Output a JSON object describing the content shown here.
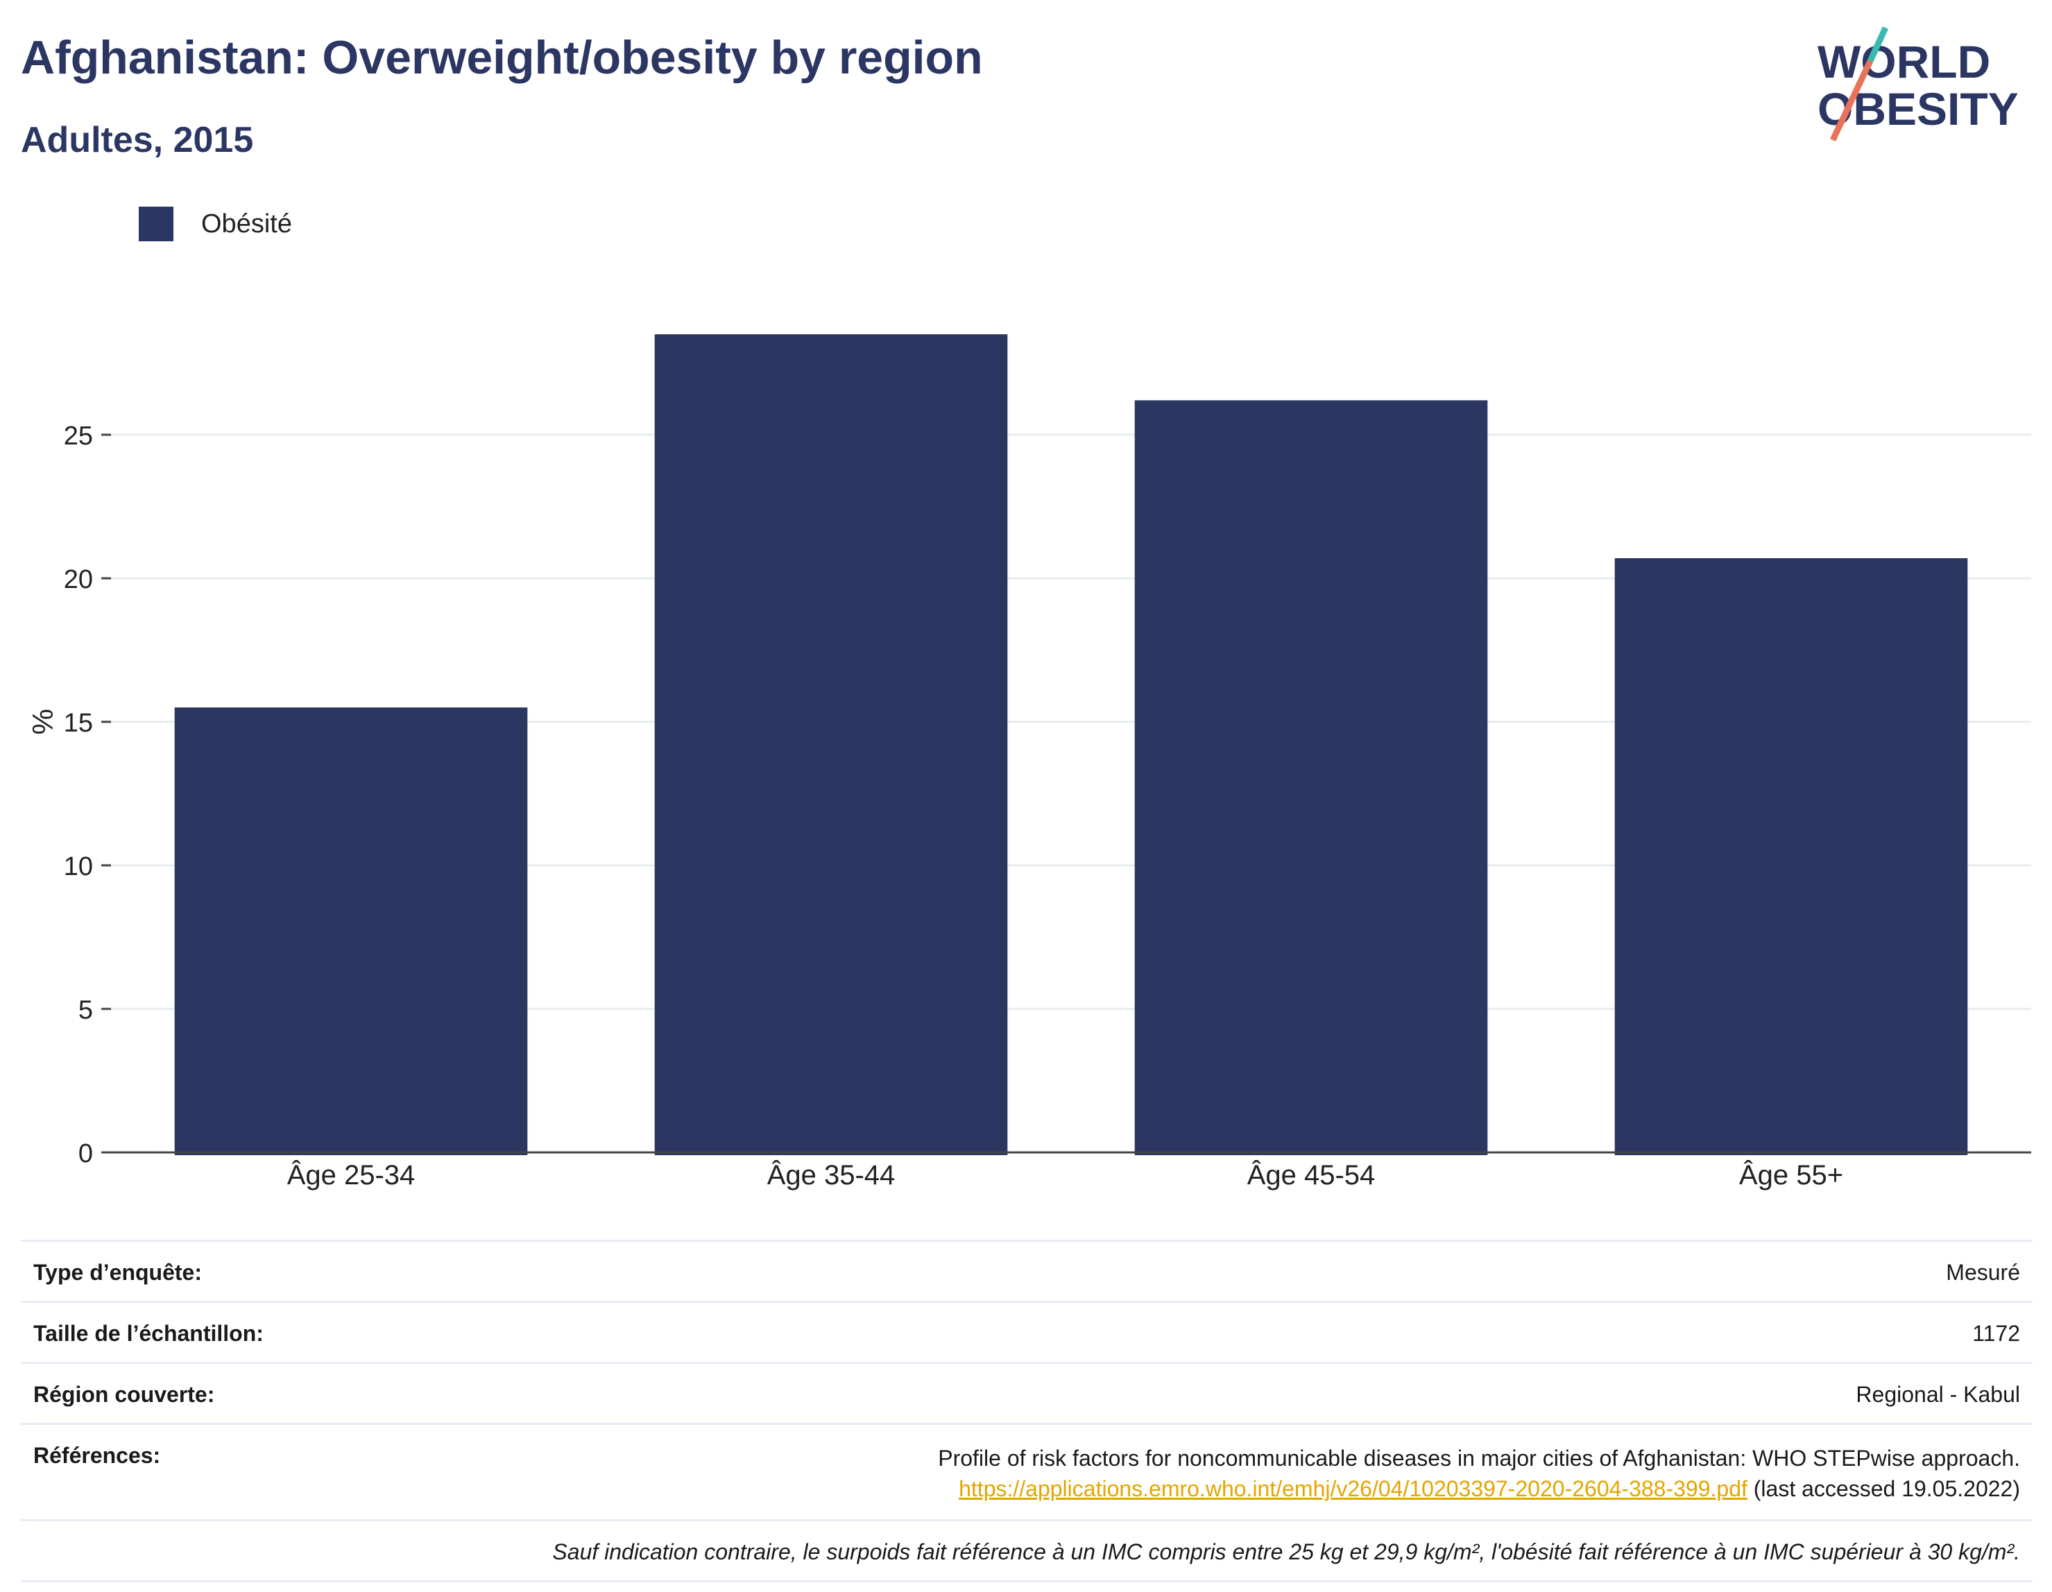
{
  "header": {
    "title": "Afghanistan: Overweight/obesity by region",
    "subtitle": "Adultes, 2015"
  },
  "logo": {
    "line1": "WORLD",
    "line2": "OBESITY",
    "accent_teal": "#3bb8b0",
    "accent_coral": "#e8735a"
  },
  "legend": {
    "items": [
      {
        "label": "Obésité",
        "color": "#2b3663"
      }
    ]
  },
  "chart_data": {
    "type": "bar",
    "categories": [
      "Âge 25-34",
      "Âge 35-44",
      "Âge 45-54",
      "Âge 55+"
    ],
    "series": [
      {
        "name": "Obésité",
        "values": [
          15.5,
          28.5,
          26.2,
          20.7
        ],
        "color": "#2b3663"
      }
    ],
    "ylabel": "%",
    "ylim": [
      0,
      30
    ],
    "yticks": [
      0,
      5,
      10,
      15,
      20,
      25
    ],
    "grid": true,
    "legend_position": "top-left"
  },
  "info": {
    "survey_type_label": "Type d’enquête:",
    "survey_type_value": "Mesuré",
    "sample_size_label": "Taille de l’échantillon:",
    "sample_size_value": "1172",
    "region_label": "Région couverte:",
    "region_value": "Regional - Kabul",
    "references_label": "Références:",
    "references_text": "Profile of risk factors for noncommunicable diseases in major cities of Afghanistan: WHO STEPwise approach.",
    "references_link": "https://applications.emro.who.int/emhj/v26/04/10203397-2020-2604-388-399.pdf",
    "references_accessed": " (last accessed 19.05.2022)",
    "note": "Sauf indication contraire, le surpoids fait référence à un IMC compris entre 25 kg et 29,9 kg/m², l'obésité fait référence à un IMC supérieur à 30 kg/m²."
  }
}
